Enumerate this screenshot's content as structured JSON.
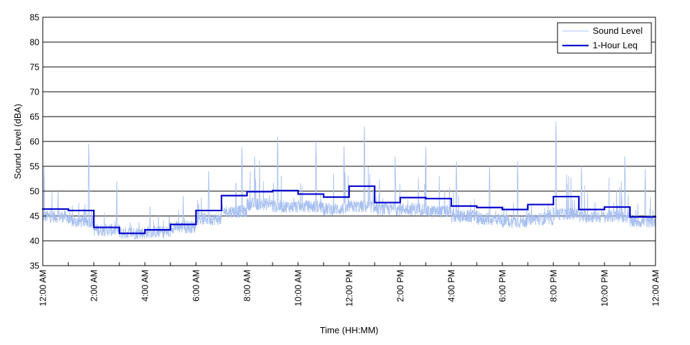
{
  "chart_data": {
    "type": "line",
    "title": "",
    "xlabel": "Time (HH:MM)",
    "ylabel": "Sound Level (dBA)",
    "xlim": [
      0,
      24
    ],
    "ylim": [
      35,
      85
    ],
    "yticks": [
      35,
      40,
      45,
      50,
      55,
      60,
      65,
      70,
      75,
      80,
      85
    ],
    "xticks": [
      {
        "x": 0,
        "label": "12:00 AM"
      },
      {
        "x": 2,
        "label": "2:00 AM"
      },
      {
        "x": 4,
        "label": "4:00 AM"
      },
      {
        "x": 6,
        "label": "6:00 AM"
      },
      {
        "x": 8,
        "label": "8:00 AM"
      },
      {
        "x": 10,
        "label": "10:00 AM"
      },
      {
        "x": 12,
        "label": "12:00 PM"
      },
      {
        "x": 14,
        "label": "2:00 PM"
      },
      {
        "x": 16,
        "label": "4:00 PM"
      },
      {
        "x": 18,
        "label": "6:00 PM"
      },
      {
        "x": 20,
        "label": "8:00 PM"
      },
      {
        "x": 22,
        "label": "10:00 PM"
      },
      {
        "x": 24,
        "label": "12:00 AM"
      }
    ],
    "grid": "horizontal",
    "legend_position": "top-right",
    "colors": {
      "sound_level": "#a8c0f0",
      "leq": "#0000cc"
    },
    "series": [
      {
        "name": "Sound Level",
        "style": "thin-line",
        "hourly_baseline": [
          44.5,
          43.5,
          41.8,
          41.2,
          41.4,
          42.4,
          44.0,
          45.5,
          47.0,
          46.5,
          46.5,
          46.0,
          46.5,
          46.0,
          46.0,
          45.5,
          44.5,
          44.0,
          43.5,
          44.0,
          45.0,
          44.5,
          44.5,
          43.5
        ],
        "peaks": [
          {
            "x": 0.05,
            "y": 55
          },
          {
            "x": 0.6,
            "y": 50
          },
          {
            "x": 1.8,
            "y": 59.5
          },
          {
            "x": 2.9,
            "y": 52
          },
          {
            "x": 4.2,
            "y": 47
          },
          {
            "x": 5.5,
            "y": 49
          },
          {
            "x": 6.5,
            "y": 54
          },
          {
            "x": 7.8,
            "y": 59
          },
          {
            "x": 8.3,
            "y": 57
          },
          {
            "x": 9.2,
            "y": 61
          },
          {
            "x": 10.7,
            "y": 60
          },
          {
            "x": 11.8,
            "y": 59
          },
          {
            "x": 12.6,
            "y": 63
          },
          {
            "x": 13.8,
            "y": 57
          },
          {
            "x": 15.0,
            "y": 59
          },
          {
            "x": 16.2,
            "y": 56
          },
          {
            "x": 17.5,
            "y": 55
          },
          {
            "x": 18.6,
            "y": 56
          },
          {
            "x": 20.1,
            "y": 64
          },
          {
            "x": 21.1,
            "y": 55
          },
          {
            "x": 22.8,
            "y": 57
          },
          {
            "x": 23.6,
            "y": 54.5
          }
        ]
      },
      {
        "name": "1-Hour Leq",
        "style": "step",
        "x": [
          0,
          1,
          2,
          3,
          4,
          5,
          6,
          7,
          8,
          9,
          10,
          11,
          12,
          13,
          14,
          15,
          16,
          17,
          18,
          19,
          20,
          21,
          22,
          23
        ],
        "values": [
          46.4,
          46.1,
          42.7,
          41.5,
          42.2,
          43.3,
          46.1,
          49.1,
          49.9,
          50.1,
          49.4,
          48.8,
          51.0,
          47.7,
          48.7,
          48.5,
          47.0,
          46.7,
          46.3,
          47.3,
          48.9,
          46.3,
          46.8,
          44.8
        ]
      }
    ]
  }
}
